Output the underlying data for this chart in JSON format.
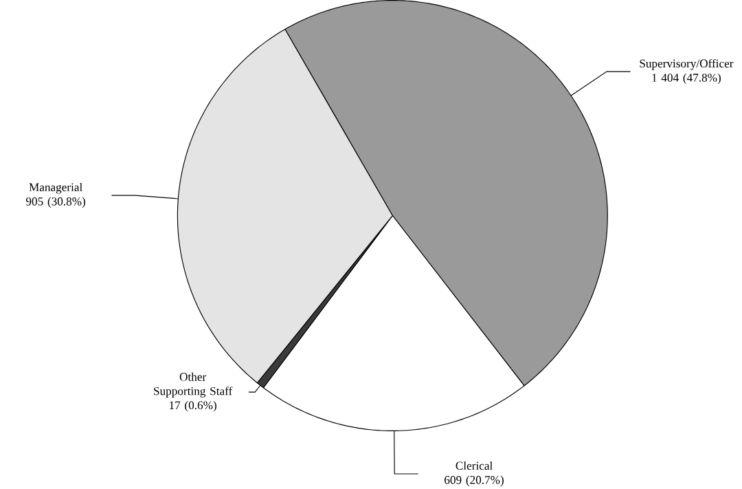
{
  "chart_data": {
    "type": "pie",
    "categories": [
      "Supervisory/Officer",
      "Clerical",
      "Other Supporting Staff",
      "Managerial"
    ],
    "values": [
      1404,
      609,
      17,
      905
    ],
    "value_labels": [
      "1 404 (47.8%)",
      "609 (20.7%)",
      "17 (0.6%)",
      "905 (30.8%)"
    ],
    "colors": [
      "#9a9a9a",
      "#ffffff",
      "#3a3a3a",
      "#e4e4e4"
    ]
  }
}
